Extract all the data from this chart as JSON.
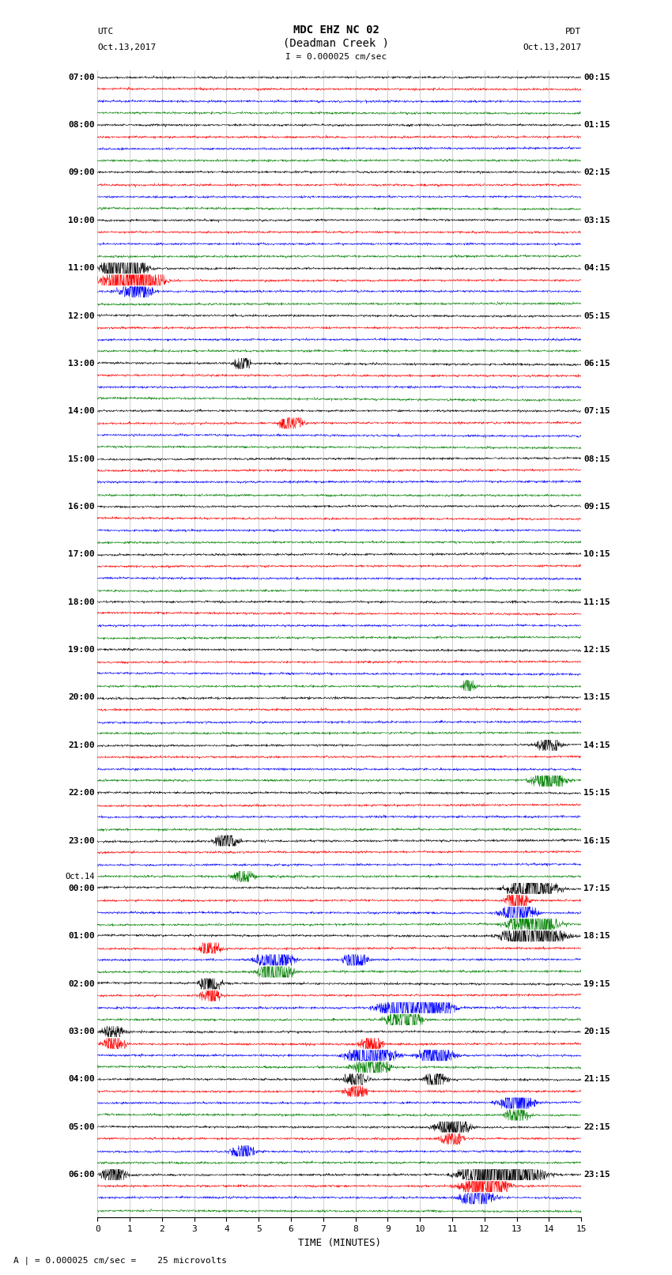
{
  "title_line1": "MDC EHZ NC 02",
  "title_line2": "(Deadman Creek )",
  "title_line3": "I = 0.000025 cm/sec",
  "left_header_line1": "UTC",
  "left_header_line2": "Oct.13,2017",
  "right_header_line1": "PDT",
  "right_header_line2": "Oct.13,2017",
  "xlabel": "TIME (MINUTES)",
  "footer": "A | = 0.000025 cm/sec =    25 microvolts",
  "utc_labels": [
    "07:00",
    "",
    "",
    "",
    "08:00",
    "",
    "",
    "",
    "09:00",
    "",
    "",
    "",
    "10:00",
    "",
    "",
    "",
    "11:00",
    "",
    "",
    "",
    "12:00",
    "",
    "",
    "",
    "13:00",
    "",
    "",
    "",
    "14:00",
    "",
    "",
    "",
    "15:00",
    "",
    "",
    "",
    "16:00",
    "",
    "",
    "",
    "17:00",
    "",
    "",
    "",
    "18:00",
    "",
    "",
    "",
    "19:00",
    "",
    "",
    "",
    "20:00",
    "",
    "",
    "",
    "21:00",
    "",
    "",
    "",
    "22:00",
    "",
    "",
    "",
    "23:00",
    "",
    "",
    "",
    "Oct.14",
    "00:00",
    "",
    "",
    "",
    "01:00",
    "",
    "",
    "",
    "02:00",
    "",
    "",
    "",
    "03:00",
    "",
    "",
    "",
    "04:00",
    "",
    "",
    "",
    "05:00",
    "",
    "",
    "",
    "06:00",
    "",
    "",
    ""
  ],
  "pdt_labels": [
    "00:15",
    "",
    "",
    "",
    "01:15",
    "",
    "",
    "",
    "02:15",
    "",
    "",
    "",
    "03:15",
    "",
    "",
    "",
    "04:15",
    "",
    "",
    "",
    "05:15",
    "",
    "",
    "",
    "06:15",
    "",
    "",
    "",
    "07:15",
    "",
    "",
    "",
    "08:15",
    "",
    "",
    "",
    "09:15",
    "",
    "",
    "",
    "10:15",
    "",
    "",
    "",
    "11:15",
    "",
    "",
    "",
    "12:15",
    "",
    "",
    "",
    "13:15",
    "",
    "",
    "",
    "14:15",
    "",
    "",
    "",
    "15:15",
    "",
    "",
    "",
    "16:15",
    "",
    "",
    "",
    "17:15",
    "",
    "",
    "",
    "18:15",
    "",
    "",
    "",
    "19:15",
    "",
    "",
    "",
    "20:15",
    "",
    "",
    "",
    "21:15",
    "",
    "",
    "",
    "22:15",
    "",
    "",
    "",
    "23:15",
    "",
    "",
    ""
  ],
  "trace_colors": [
    "black",
    "red",
    "blue",
    "green"
  ],
  "n_traces_total": 96,
  "x_min": 0,
  "x_max": 15,
  "x_ticks": [
    0,
    1,
    2,
    3,
    4,
    5,
    6,
    7,
    8,
    9,
    10,
    11,
    12,
    13,
    14,
    15
  ],
  "bg_color": "white",
  "seed": 42
}
